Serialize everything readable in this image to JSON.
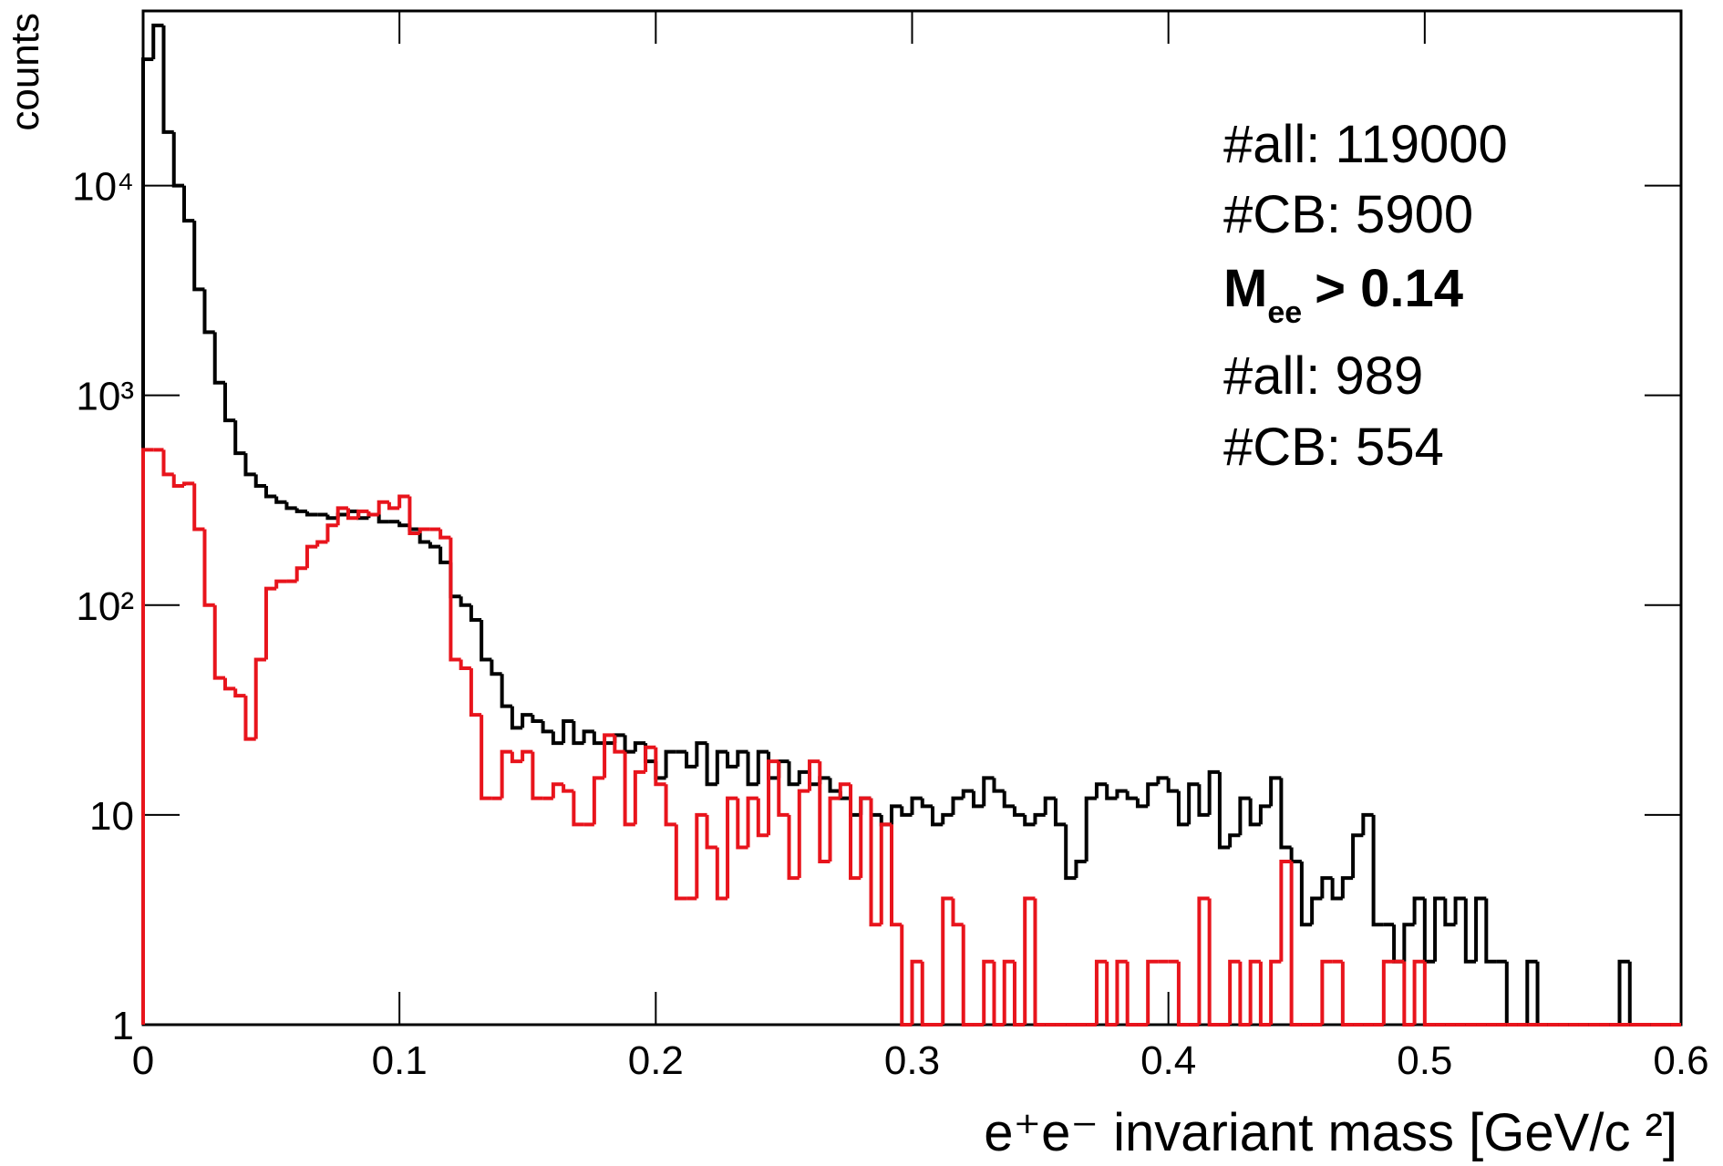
{
  "chart_data": {
    "type": "histogram",
    "ylabel": "counts",
    "xlabel": "e⁺e⁻ invariant mass [GeV/c ²]",
    "log_y": true,
    "xlim": [
      0,
      0.6
    ],
    "ylim": [
      1,
      68000
    ],
    "xticks": [
      0,
      0.1,
      0.2,
      0.3,
      0.4,
      0.5,
      0.6
    ],
    "yticks": [
      1,
      10,
      {
        "value": 100,
        "label": "10²"
      },
      {
        "value": 1000,
        "label": "10³"
      },
      {
        "value": 10000,
        "label": "10⁴"
      }
    ],
    "annotations": {
      "all_total": "#all: 119000",
      "cb_total": "#CB: 5900",
      "cut": {
        "symbol": "M",
        "subscript": "ee",
        "text": "> 0.14"
      },
      "all_cut": "#all: 989",
      "cb_cut": "#CB: 554"
    },
    "bins": [
      0,
      0.004,
      0.008,
      0.012,
      0.016,
      0.02,
      0.024,
      0.028,
      0.032,
      0.036,
      0.04,
      0.044,
      0.048,
      0.052,
      0.056,
      0.06,
      0.064,
      0.068,
      0.072,
      0.076,
      0.08,
      0.084,
      0.088,
      0.092,
      0.096,
      0.1,
      0.104,
      0.108,
      0.112,
      0.116,
      0.12,
      0.124,
      0.128,
      0.132,
      0.136,
      0.14,
      0.144,
      0.148,
      0.152,
      0.156,
      0.16,
      0.164,
      0.168,
      0.172,
      0.176,
      0.18,
      0.184,
      0.188,
      0.192,
      0.196,
      0.2,
      0.204,
      0.208,
      0.212,
      0.216,
      0.22,
      0.224,
      0.228,
      0.232,
      0.236,
      0.24,
      0.244,
      0.248,
      0.252,
      0.256,
      0.26,
      0.264,
      0.268,
      0.272,
      0.276,
      0.28,
      0.284,
      0.288,
      0.292,
      0.296,
      0.3,
      0.304,
      0.308,
      0.312,
      0.316,
      0.32,
      0.324,
      0.328,
      0.332,
      0.336,
      0.34,
      0.344,
      0.348,
      0.352,
      0.356,
      0.36,
      0.364,
      0.368,
      0.372,
      0.376,
      0.38,
      0.384,
      0.388,
      0.392,
      0.396,
      0.4,
      0.404,
      0.408,
      0.412,
      0.416,
      0.42,
      0.424,
      0.428,
      0.432,
      0.436,
      0.44,
      0.444,
      0.448,
      0.452,
      0.456,
      0.46,
      0.464,
      0.468,
      0.472,
      0.476,
      0.48,
      0.484,
      0.488,
      0.492,
      0.496,
      0.5,
      0.504,
      0.508,
      0.512,
      0.516,
      0.52,
      0.524,
      0.528,
      0.532,
      0.536,
      0.54,
      0.544,
      0.548,
      0.552,
      0.556,
      0.56,
      0.564,
      0.568,
      0.572,
      0.576,
      0.58,
      0.584,
      0.588,
      0.592,
      0.596,
      0.6
    ],
    "series": [
      {
        "color": "#000000",
        "values": [
          40000,
          58000,
          18000,
          10000,
          6800,
          3200,
          2000,
          1150,
          760,
          530,
          420,
          370,
          330,
          310,
          290,
          280,
          270,
          270,
          260,
          270,
          280,
          260,
          270,
          250,
          250,
          240,
          230,
          200,
          190,
          160,
          110,
          100,
          85,
          55,
          47,
          33,
          26,
          30,
          28,
          25,
          22,
          28,
          22,
          25,
          22,
          22,
          24,
          20,
          22,
          18,
          15,
          20,
          20,
          17,
          22,
          14,
          20,
          17,
          20,
          14,
          20,
          15,
          18,
          14,
          16,
          14,
          15,
          13,
          12,
          10,
          12,
          10,
          9,
          11,
          10,
          12,
          11,
          9,
          10,
          12,
          13,
          11,
          15,
          13,
          11,
          10,
          9,
          10,
          12,
          9,
          5,
          6,
          12,
          14,
          12,
          13,
          12,
          11,
          14,
          15,
          13,
          9,
          14,
          10,
          16,
          7,
          8,
          12,
          9,
          11,
          15,
          7,
          6,
          3,
          4,
          5,
          4,
          5,
          8,
          10,
          3,
          3,
          2,
          3,
          4,
          2,
          4,
          3,
          4,
          2,
          4,
          2,
          2,
          1,
          1,
          2,
          1,
          1,
          1,
          1,
          1,
          1,
          1,
          1,
          2,
          1,
          1,
          1,
          1,
          1
        ]
      },
      {
        "color": "#e8141c",
        "values": [
          550,
          550,
          420,
          370,
          380,
          230,
          100,
          45,
          40,
          37,
          23,
          55,
          120,
          130,
          130,
          150,
          190,
          200,
          240,
          290,
          260,
          280,
          270,
          310,
          290,
          330,
          220,
          230,
          230,
          210,
          55,
          50,
          30,
          12,
          12,
          20,
          18,
          20,
          12,
          12,
          14,
          13,
          9,
          9,
          15,
          24,
          20,
          9,
          16,
          21,
          14,
          9,
          4,
          4,
          10,
          7,
          4,
          12,
          7,
          12,
          8,
          18,
          10,
          5,
          13,
          18,
          6,
          12,
          14,
          5,
          12,
          3,
          9,
          3,
          1,
          2,
          1,
          1,
          4,
          3,
          1,
          1,
          2,
          1,
          2,
          1,
          4,
          1,
          1,
          1,
          1,
          1,
          1,
          2,
          1,
          2,
          1,
          1,
          2,
          2,
          2,
          1,
          1,
          4,
          1,
          1,
          2,
          1,
          2,
          1,
          2,
          6,
          1,
          1,
          1,
          2,
          2,
          1,
          1,
          1,
          1,
          2,
          2,
          1,
          2,
          1,
          1,
          1,
          1,
          1,
          1,
          1,
          1,
          1,
          1,
          1,
          1,
          1,
          1,
          1,
          1,
          1,
          1,
          1,
          1,
          1,
          1,
          1,
          1,
          1
        ]
      }
    ]
  }
}
